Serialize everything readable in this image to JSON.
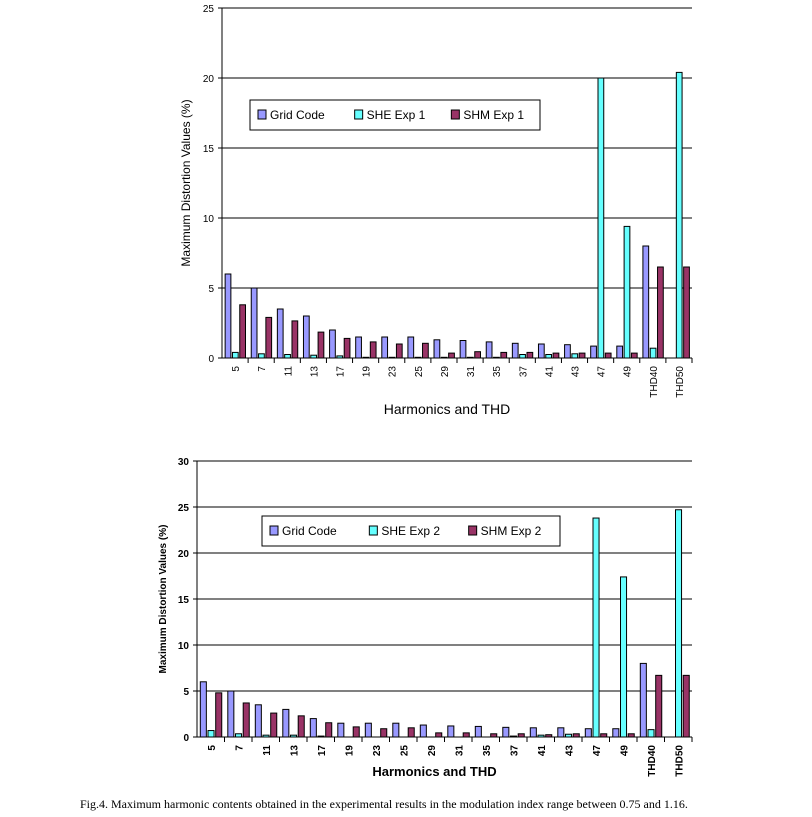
{
  "colors": {
    "grid_code": "#9999ff",
    "she": "#66ffff",
    "shm": "#993366"
  },
  "chart_data": [
    {
      "type": "bar",
      "title": "",
      "xlabel": "Harmonics and THD",
      "ylabel": "Maximum Distortion Values (%)",
      "ylim": [
        0,
        25
      ],
      "yticks": [
        0,
        5,
        10,
        15,
        20,
        25
      ],
      "grid": true,
      "legend": "upper-left",
      "categories": [
        "5",
        "7",
        "11",
        "13",
        "17",
        "19",
        "23",
        "25",
        "29",
        "31",
        "35",
        "37",
        "41",
        "43",
        "47",
        "49",
        "THD40",
        "THD50"
      ],
      "series": [
        {
          "name": "Grid Code",
          "values": [
            6,
            5,
            3.5,
            3,
            2,
            1.5,
            1.5,
            1.5,
            1.3,
            1.25,
            1.15,
            1.05,
            1,
            0.95,
            0.85,
            0.85,
            8,
            0
          ]
        },
        {
          "name": "SHE Exp 1",
          "values": [
            0.4,
            0.3,
            0.25,
            0.2,
            0.15,
            0.05,
            0.05,
            0.05,
            0.05,
            0.05,
            0.05,
            0.25,
            0.25,
            0.3,
            20,
            9.4,
            0.7,
            20.4
          ]
        },
        {
          "name": "SHM Exp 1",
          "values": [
            3.8,
            2.9,
            2.65,
            1.85,
            1.4,
            1.15,
            1.0,
            1.05,
            0.35,
            0.45,
            0.4,
            0.4,
            0.35,
            0.35,
            0.35,
            0.35,
            6.5,
            6.5
          ]
        }
      ]
    },
    {
      "type": "bar",
      "title": "",
      "xlabel": "Harmonics and THD",
      "ylabel": "Maximum Distortion Values (%)",
      "ylim": [
        0,
        30
      ],
      "yticks": [
        0,
        5,
        10,
        15,
        20,
        25,
        30
      ],
      "grid": true,
      "legend": "upper-left",
      "categories": [
        "5",
        "7",
        "11",
        "13",
        "17",
        "19",
        "23",
        "25",
        "29",
        "31",
        "35",
        "37",
        "41",
        "43",
        "47",
        "49",
        "THD40",
        "THD50"
      ],
      "series": [
        {
          "name": "Grid Code",
          "values": [
            6,
            5,
            3.5,
            3,
            2,
            1.5,
            1.5,
            1.5,
            1.3,
            1.2,
            1.15,
            1.05,
            1,
            1,
            0.9,
            0.9,
            8,
            0
          ]
        },
        {
          "name": "SHE Exp 2",
          "values": [
            0.7,
            0.35,
            0.2,
            0.2,
            0.1,
            0,
            0,
            0,
            0,
            0,
            0,
            0.1,
            0.2,
            0.3,
            23.8,
            17.4,
            0.8,
            24.7
          ]
        },
        {
          "name": "SHM Exp 2",
          "values": [
            4.8,
            3.7,
            2.6,
            2.3,
            1.55,
            1.1,
            0.9,
            1.0,
            0.45,
            0.45,
            0.35,
            0.35,
            0.25,
            0.35,
            0.35,
            0.35,
            6.7,
            6.7
          ]
        }
      ]
    }
  ],
  "caption": "Fig.4. Maximum harmonic contents obtained in the experimental results in the modulation index range between 0.75 and 1.16."
}
